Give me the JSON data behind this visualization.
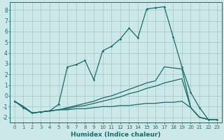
{
  "title": "",
  "xlabel": "Humidex (Indice chaleur)",
  "bg_color": "#cce8e8",
  "grid_color": "#aacccc",
  "line_color": "#1a6b6b",
  "xlim": [
    -0.5,
    23.5
  ],
  "ylim": [
    -2.5,
    8.7
  ],
  "xticks": [
    0,
    1,
    2,
    3,
    4,
    5,
    6,
    7,
    8,
    9,
    10,
    11,
    12,
    13,
    14,
    15,
    16,
    17,
    18,
    19,
    20,
    21,
    22,
    23
  ],
  "yticks": [
    -2,
    -1,
    0,
    1,
    2,
    3,
    4,
    5,
    6,
    7,
    8
  ],
  "series": [
    {
      "x": [
        0,
        1,
        2,
        3,
        4,
        5,
        6,
        7,
        8,
        9,
        10,
        11,
        12,
        13,
        14,
        15,
        16,
        17,
        18,
        19,
        20,
        21,
        22,
        23
      ],
      "y": [
        -0.5,
        -1.1,
        -1.6,
        -1.5,
        -1.4,
        -0.8,
        2.7,
        2.9,
        3.3,
        1.5,
        4.2,
        4.6,
        5.3,
        6.3,
        5.4,
        8.1,
        8.2,
        8.3,
        5.5,
        2.7,
        0.3,
        -1.1,
        -2.2,
        -2.2
      ],
      "marker": true
    },
    {
      "x": [
        0,
        1,
        2,
        3,
        4,
        5,
        6,
        7,
        8,
        9,
        10,
        11,
        12,
        13,
        14,
        15,
        16,
        17,
        18,
        19,
        20,
        21,
        22,
        23
      ],
      "y": [
        -0.5,
        -1.0,
        -1.6,
        -1.5,
        -1.4,
        -1.3,
        -1.3,
        -1.2,
        -1.2,
        -1.1,
        -1.0,
        -1.0,
        -0.9,
        -0.9,
        -0.8,
        -0.7,
        -0.7,
        -0.6,
        -0.6,
        -0.5,
        -1.1,
        -2.0,
        -2.2,
        -2.2
      ],
      "marker": false
    },
    {
      "x": [
        0,
        1,
        2,
        3,
        4,
        5,
        6,
        7,
        8,
        9,
        10,
        11,
        12,
        13,
        14,
        15,
        16,
        17,
        18,
        19,
        20,
        21,
        22,
        23
      ],
      "y": [
        -0.5,
        -1.0,
        -1.6,
        -1.5,
        -1.4,
        -1.3,
        -1.2,
        -1.0,
        -0.9,
        -0.7,
        -0.5,
        -0.3,
        -0.1,
        0.2,
        0.4,
        0.7,
        0.9,
        1.2,
        1.4,
        1.6,
        -1.1,
        -2.0,
        -2.2,
        -2.2
      ],
      "marker": false
    },
    {
      "x": [
        0,
        1,
        2,
        3,
        4,
        5,
        6,
        7,
        8,
        9,
        10,
        11,
        12,
        13,
        14,
        15,
        16,
        17,
        18,
        19,
        20,
        21,
        22,
        23
      ],
      "y": [
        -0.5,
        -1.0,
        -1.6,
        -1.5,
        -1.4,
        -1.3,
        -1.1,
        -0.9,
        -0.7,
        -0.5,
        -0.2,
        0.0,
        0.3,
        0.6,
        0.9,
        1.2,
        1.4,
        2.7,
        2.6,
        2.5,
        -1.1,
        -2.0,
        -2.2,
        -2.2
      ],
      "marker": false
    }
  ]
}
